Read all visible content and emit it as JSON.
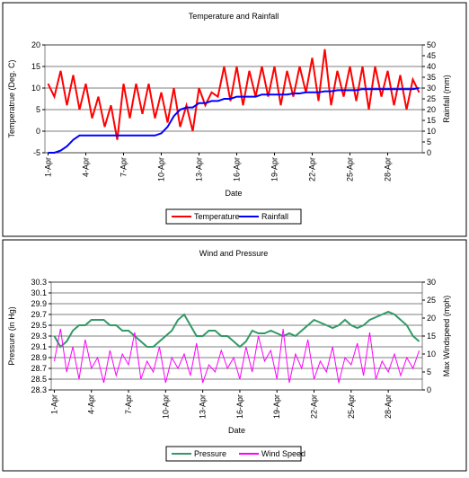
{
  "chart_data": [
    {
      "type": "line",
      "title": "Temperature and Rainfall",
      "x_label": "Date",
      "y_label": "Temperatrue (Deg. C)",
      "y2_label": "Rainfall (mm)",
      "categories": [
        "1-Apr",
        null,
        null,
        null,
        null,
        null,
        "4-Apr",
        null,
        null,
        null,
        null,
        null,
        "7-Apr",
        null,
        null,
        null,
        null,
        null,
        "10-Apr",
        null,
        null,
        null,
        null,
        null,
        "13-Apr",
        null,
        null,
        null,
        null,
        null,
        "16-Apr",
        null,
        null,
        null,
        null,
        null,
        "19-Apr",
        null,
        null,
        null,
        null,
        null,
        "22-Apr",
        null,
        null,
        null,
        null,
        null,
        "25-Apr",
        null,
        null,
        null,
        null,
        null,
        "28-Apr",
        null,
        null,
        null,
        null,
        null
      ],
      "series": [
        {
          "name": "Temperature",
          "color": "#ff0000",
          "values": [
            11,
            8,
            14,
            6,
            13,
            5,
            11,
            3,
            8,
            1,
            6,
            -2,
            11,
            3,
            11,
            4,
            11,
            3,
            9,
            2,
            10,
            1,
            6,
            0,
            10,
            6,
            9,
            8,
            15,
            7,
            15,
            6,
            14,
            8,
            15,
            8,
            15,
            6,
            14,
            8,
            15,
            9,
            17,
            7,
            19,
            6,
            14,
            8,
            15,
            7,
            15,
            5,
            15,
            8,
            14,
            6,
            13,
            5,
            12,
            9
          ]
        },
        {
          "name": "Rainfall",
          "color": "#0000ff",
          "axis": "y2",
          "values": [
            0,
            0,
            1,
            3,
            6,
            8,
            8,
            8,
            8,
            8,
            8,
            8,
            8,
            8,
            8,
            8,
            8,
            8,
            9,
            12,
            17,
            20,
            21,
            21,
            23,
            23,
            24,
            24,
            25,
            25,
            26,
            26,
            26,
            26,
            27,
            27,
            27,
            27,
            27,
            27.5,
            27.5,
            28,
            28,
            28,
            28.5,
            28.5,
            29,
            29,
            29,
            29,
            29.5,
            29.5,
            29.5,
            29.5,
            29.5,
            29.5,
            29.5,
            29.5,
            29.5,
            30
          ]
        }
      ],
      "ylim": [
        -5,
        20
      ],
      "yticks": [
        -5,
        0,
        5,
        10,
        15,
        20
      ],
      "y2lim": [
        0,
        50
      ],
      "y2ticks": [
        0,
        5,
        10,
        15,
        20,
        25,
        30,
        35,
        40,
        45,
        50
      ],
      "grid": true,
      "legend": "bottom"
    },
    {
      "type": "line",
      "title": "Wind and Pressure",
      "x_label": "Date",
      "y_label": "Pressure (in Hg)",
      "y2_label": "Max Windspeed (mph)",
      "categories": [
        "1-Apr",
        null,
        null,
        null,
        null,
        null,
        "4-Apr",
        null,
        null,
        null,
        null,
        null,
        "7-Apr",
        null,
        null,
        null,
        null,
        null,
        "10-Apr",
        null,
        null,
        null,
        null,
        null,
        "13-Apr",
        null,
        null,
        null,
        null,
        null,
        "16-Apr",
        null,
        null,
        null,
        null,
        null,
        "19-Apr",
        null,
        null,
        null,
        null,
        null,
        "22-Apr",
        null,
        null,
        null,
        null,
        null,
        "25-Apr",
        null,
        null,
        null,
        null,
        null,
        "28-Apr",
        null,
        null,
        null,
        null,
        null
      ],
      "series": [
        {
          "name": "Pressure",
          "color": "#339966",
          "values": [
            29.3,
            29.1,
            29.2,
            29.4,
            29.5,
            29.5,
            29.6,
            29.6,
            29.6,
            29.5,
            29.5,
            29.4,
            29.4,
            29.3,
            29.2,
            29.1,
            29.1,
            29.2,
            29.3,
            29.4,
            29.6,
            29.7,
            29.5,
            29.3,
            29.3,
            29.4,
            29.4,
            29.3,
            29.3,
            29.2,
            29.1,
            29.2,
            29.4,
            29.35,
            29.35,
            29.4,
            29.35,
            29.3,
            29.35,
            29.3,
            29.4,
            29.5,
            29.6,
            29.55,
            29.5,
            29.45,
            29.5,
            29.6,
            29.5,
            29.45,
            29.5,
            29.6,
            29.65,
            29.7,
            29.75,
            29.7,
            29.6,
            29.5,
            29.3,
            29.2
          ]
        },
        {
          "name": "Wind Speed",
          "color": "#ff00ff",
          "axis": "y2",
          "values": [
            8,
            17,
            5,
            12,
            3,
            14,
            6,
            9,
            2,
            11,
            4,
            10,
            7,
            16,
            3,
            8,
            5,
            12,
            2,
            9,
            6,
            10,
            4,
            13,
            2,
            7,
            5,
            11,
            6,
            9,
            3,
            12,
            5,
            15,
            8,
            11,
            3,
            17,
            2,
            10,
            6,
            14,
            3,
            8,
            5,
            12,
            2,
            9,
            7,
            13,
            4,
            16,
            3,
            8,
            5,
            10,
            4,
            9,
            6,
            11
          ]
        }
      ],
      "ylim": [
        28.3,
        30.3
      ],
      "yticks": [
        28.3,
        28.5,
        28.7,
        28.9,
        29.1,
        29.3,
        29.5,
        29.7,
        29.9,
        30.1,
        30.3
      ],
      "y2lim": [
        0,
        30
      ],
      "y2ticks": [
        0,
        5,
        10,
        15,
        20,
        25,
        30
      ],
      "grid": true,
      "legend": "bottom"
    }
  ]
}
